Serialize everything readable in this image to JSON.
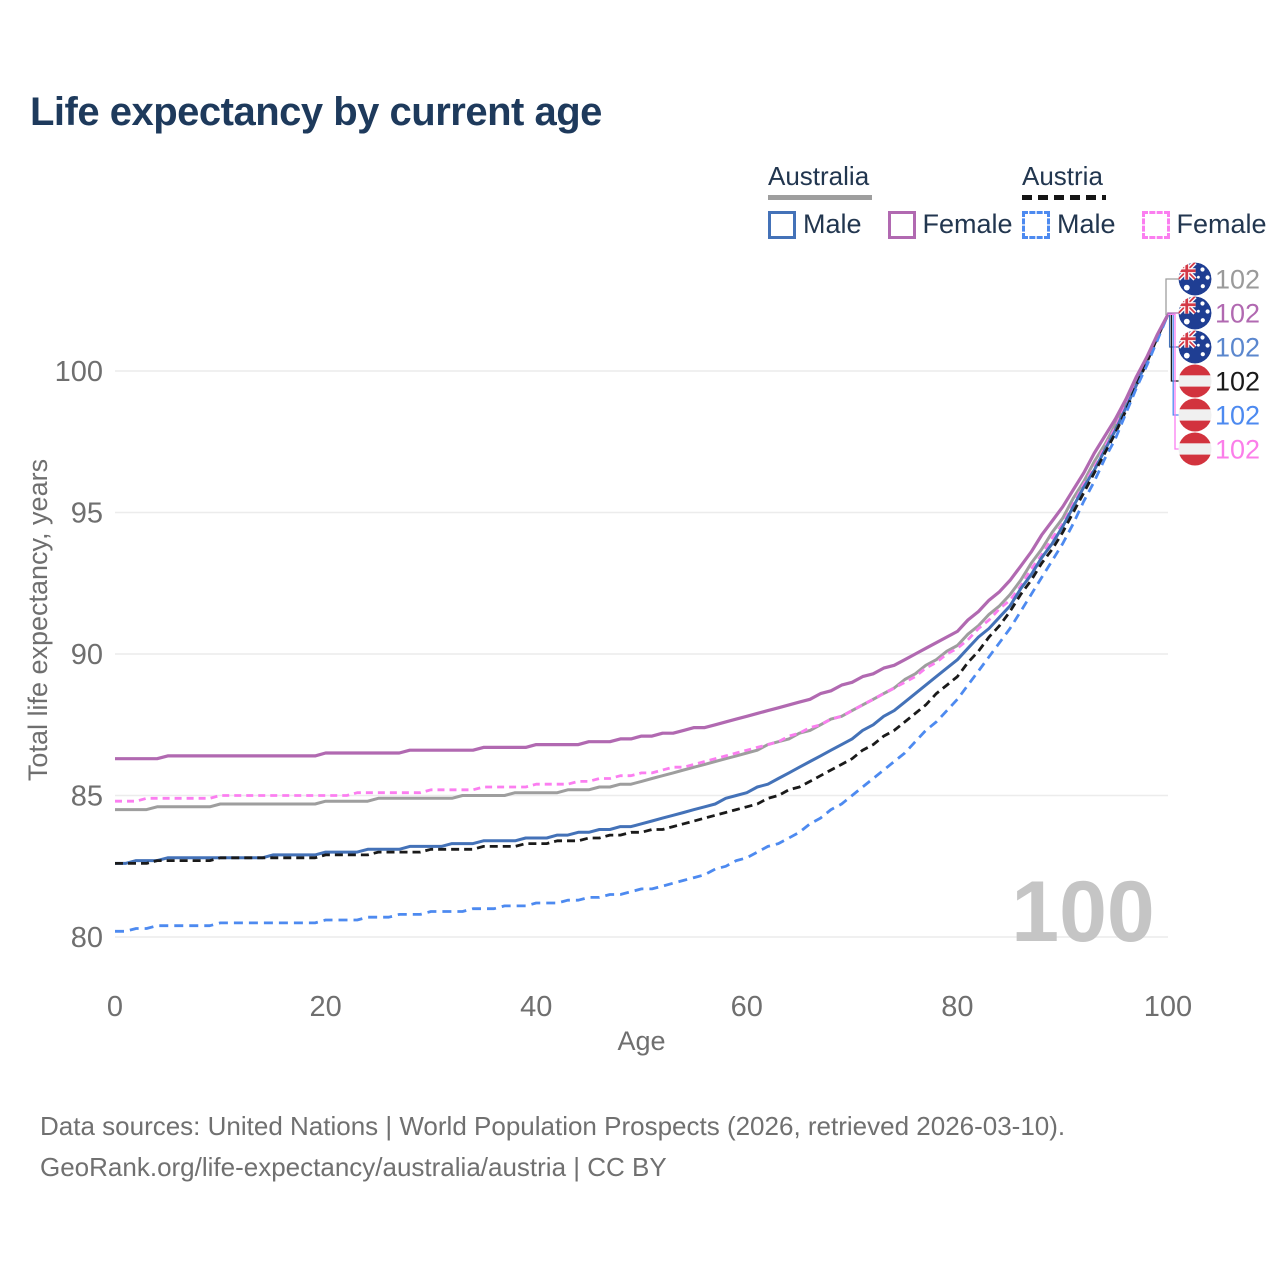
{
  "title": "Life expectancy by current age",
  "legend": {
    "groups": [
      {
        "id": "australia",
        "title": "Australia",
        "line_style": "solid",
        "underline_color": "#9e9e9e",
        "items": [
          {
            "label": "Male",
            "color": "#4472b8"
          },
          {
            "label": "Female",
            "color": "#b169b1"
          }
        ]
      },
      {
        "id": "austria",
        "title": "Austria",
        "line_style": "dashed",
        "underline_color": "#151515",
        "items": [
          {
            "label": "Male",
            "color": "#4d8af0"
          },
          {
            "label": "Female",
            "color": "#fb7ef0"
          }
        ]
      }
    ]
  },
  "chart_data": {
    "type": "line",
    "title": "Life expectancy by current age",
    "xlabel": "Age",
    "ylabel": "Total life expectancy, years",
    "x_ticks": [
      0,
      20,
      40,
      60,
      80,
      100
    ],
    "y_ticks": [
      80,
      85,
      90,
      95,
      100
    ],
    "xlim": [
      0,
      100
    ],
    "ylim": [
      79.5,
      103
    ],
    "grid": "horizontal",
    "gridline_color": "#ececec",
    "axis_text_color": "#6f6f6f",
    "watermark": "100",
    "watermark_color": "#c5c5c5",
    "x": [
      0,
      5,
      10,
      15,
      20,
      25,
      30,
      35,
      40,
      45,
      50,
      55,
      60,
      65,
      70,
      75,
      80,
      85,
      90,
      95,
      100
    ],
    "series": [
      {
        "name": "Australia — Total",
        "country": "Australia",
        "sex": "total",
        "color": "#9e9e9e",
        "dash": "solid",
        "width": 3,
        "flag": "australia",
        "rail_row": 0,
        "end_label": "102",
        "end_label_color": "#9a9a9a",
        "values": [
          84.45,
          84.6,
          84.65,
          84.7,
          84.75,
          84.85,
          84.9,
          85.0,
          85.1,
          85.2,
          85.5,
          85.95,
          86.5,
          87.15,
          88.0,
          89.05,
          90.3,
          92.1,
          94.8,
          98.1,
          102
        ]
      },
      {
        "name": "Austria — Female",
        "country": "Austria",
        "sex": "female",
        "color": "#fb7ef0",
        "dash": "dashed",
        "width": 2.8,
        "dasharray": "7 5",
        "flag": "austria",
        "rail_row": 5,
        "end_label": "102",
        "end_label_color": "#fb7ee9",
        "values": [
          84.8,
          84.9,
          84.95,
          85.0,
          85.0,
          85.1,
          85.15,
          85.25,
          85.35,
          85.5,
          85.75,
          86.1,
          86.55,
          87.2,
          88.0,
          89.0,
          90.2,
          91.9,
          94.6,
          98.0,
          102
        ]
      },
      {
        "name": "Australia — Male",
        "country": "Australia",
        "sex": "male",
        "color": "#4472b8",
        "dash": "solid",
        "width": 3,
        "flag": "australia",
        "rail_row": 2,
        "end_label": "102",
        "end_label_color": "#5b87ce",
        "values": [
          82.6,
          82.75,
          82.8,
          82.85,
          82.95,
          83.1,
          83.2,
          83.35,
          83.5,
          83.7,
          84.0,
          84.5,
          85.1,
          85.95,
          87.0,
          88.25,
          89.8,
          91.7,
          94.5,
          97.9,
          102
        ]
      },
      {
        "name": "Austria — Total",
        "country": "Austria",
        "sex": "total",
        "color": "#1a1a1a",
        "dash": "dashed",
        "width": 2.8,
        "dasharray": "8 5",
        "flag": "austria",
        "rail_row": 3,
        "end_label": "102",
        "end_label_color": "#1a1a1a",
        "values": [
          82.55,
          82.7,
          82.75,
          82.8,
          82.85,
          82.95,
          83.05,
          83.15,
          83.3,
          83.45,
          83.7,
          84.05,
          84.6,
          85.3,
          86.3,
          87.6,
          89.2,
          91.5,
          94.3,
          97.8,
          102
        ]
      },
      {
        "name": "Austria — Male",
        "country": "Austria",
        "sex": "male",
        "color": "#4d8af0",
        "dash": "dashed",
        "width": 2.8,
        "dasharray": "9 6",
        "flag": "austria",
        "rail_row": 4,
        "end_label": "102",
        "end_label_color": "#4d8af0",
        "values": [
          80.2,
          80.4,
          80.45,
          80.5,
          80.55,
          80.7,
          80.85,
          81.0,
          81.15,
          81.35,
          81.65,
          82.1,
          82.8,
          83.7,
          84.95,
          86.5,
          88.4,
          90.9,
          93.9,
          97.6,
          102
        ]
      },
      {
        "name": "Australia — Female",
        "country": "Australia",
        "sex": "female",
        "color": "#b169b1",
        "dash": "solid",
        "width": 3.2,
        "flag": "australia",
        "rail_row": 1,
        "end_label": "102",
        "end_label_color": "#b169b1",
        "values": [
          86.25,
          86.35,
          86.4,
          86.4,
          86.45,
          86.5,
          86.6,
          86.65,
          86.75,
          86.85,
          87.05,
          87.35,
          87.75,
          88.3,
          89.0,
          89.8,
          90.8,
          92.6,
          95.2,
          98.3,
          102
        ]
      }
    ]
  },
  "footer": {
    "line1": "Data sources: United Nations | World Population Prospects (2026, retrieved 2026-03-10).",
    "line2": "GeoRank.org/life-expectancy/australia/austria | CC BY"
  }
}
